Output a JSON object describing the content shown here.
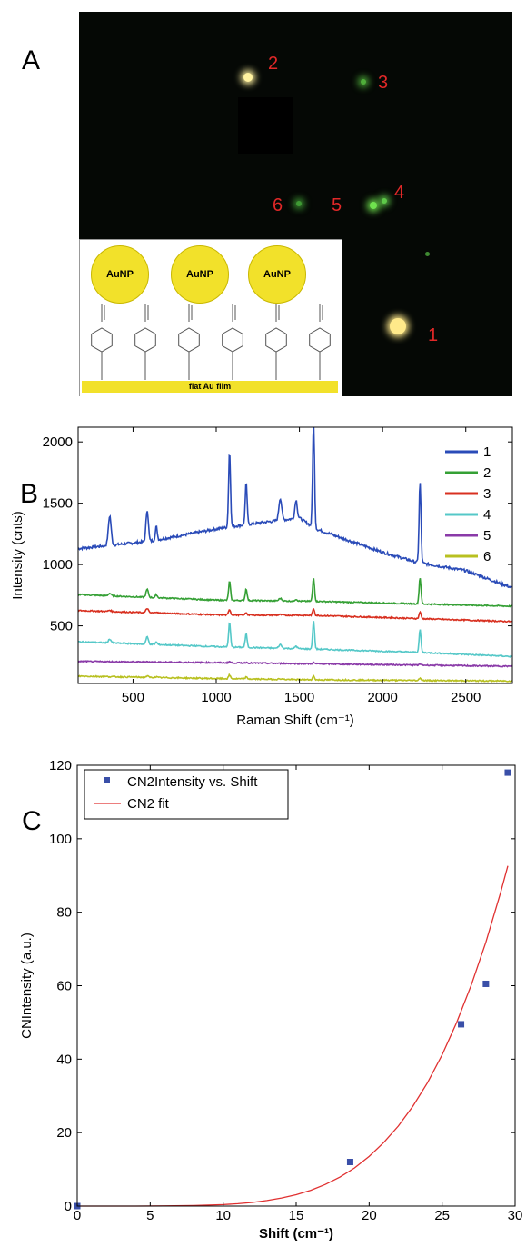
{
  "panels": {
    "a": "A",
    "b": "B",
    "c": "C"
  },
  "micrograph": {
    "spots": [
      {
        "id": "1",
        "label": "1",
        "color": "#ffe98a"
      },
      {
        "id": "2",
        "label": "2",
        "color": "#fff2a0"
      },
      {
        "id": "3",
        "label": "3",
        "color": "#4fae3a"
      },
      {
        "id": "4",
        "label": "4",
        "color": "#5ec84a"
      },
      {
        "id": "5",
        "label": "5",
        "color": "#6fe24e"
      },
      {
        "id": "6",
        "label": "6",
        "color": "#3f9a34"
      }
    ],
    "label_color": "#e02828",
    "inset": {
      "nanoparticle_label": "AuNP",
      "nanoparticles": [
        "AuNP",
        "AuNP",
        "AuNP"
      ],
      "film_label": "flat Au film",
      "molecule_count": 6
    }
  },
  "chart_data": [
    {
      "type": "line",
      "title": "",
      "xlabel": "Raman Shift (cm⁻¹)",
      "ylabel": "Intensity (cnts)",
      "xlim": [
        170,
        2780
      ],
      "ylim": [
        30,
        2120
      ],
      "xticks": [
        500,
        1000,
        1500,
        2000,
        2500
      ],
      "yticks": [
        500,
        1000,
        1500,
        2000
      ],
      "legend_position": "top-right",
      "peak_positions": [
        360,
        585,
        640,
        1080,
        1180,
        1385,
        1480,
        1585,
        2225
      ],
      "series": [
        {
          "name": "1",
          "color": "#2a4bb8",
          "baseline": [
            [
              170,
              1130
            ],
            [
              600,
              1190
            ],
            [
              1000,
              1290
            ],
            [
              1200,
              1330
            ],
            [
              1500,
              1380
            ],
            [
              1600,
              1290
            ],
            [
              2000,
              1100
            ],
            [
              2200,
              1020
            ],
            [
              2500,
              950
            ],
            [
              2780,
              810
            ]
          ],
          "peaks": [
            240,
            260,
            110,
            620,
            340,
            180,
            150,
            860,
            660
          ]
        },
        {
          "name": "2",
          "color": "#35a035",
          "baseline": [
            [
              170,
              755
            ],
            [
              1000,
              710
            ],
            [
              1600,
              700
            ],
            [
              2200,
              680
            ],
            [
              2780,
              660
            ]
          ],
          "peaks": [
            20,
            65,
            25,
            155,
            95,
            20,
            15,
            190,
            215
          ]
        },
        {
          "name": "3",
          "color": "#d83020",
          "baseline": [
            [
              170,
              625
            ],
            [
              1000,
              590
            ],
            [
              1600,
              585
            ],
            [
              2200,
              560
            ],
            [
              2780,
              535
            ]
          ],
          "peaks": [
            10,
            35,
            10,
            45,
            20,
            5,
            5,
            55,
            55
          ]
        },
        {
          "name": "4",
          "color": "#55c8c8",
          "baseline": [
            [
              170,
              370
            ],
            [
              1000,
              330
            ],
            [
              1600,
              310
            ],
            [
              2200,
              285
            ],
            [
              2780,
              250
            ]
          ],
          "peaks": [
            30,
            60,
            20,
            200,
            110,
            30,
            20,
            230,
            185
          ]
        },
        {
          "name": "5",
          "color": "#8a3aa8",
          "baseline": [
            [
              170,
              210
            ],
            [
              1000,
              200
            ],
            [
              1600,
              190
            ],
            [
              2200,
              180
            ],
            [
              2780,
              170
            ]
          ],
          "peaks": [
            0,
            5,
            0,
            10,
            5,
            0,
            0,
            10,
            8
          ]
        },
        {
          "name": "6",
          "color": "#b8c020",
          "baseline": [
            [
              170,
              90
            ],
            [
              1000,
              70
            ],
            [
              1600,
              60
            ],
            [
              2200,
              55
            ],
            [
              2780,
              50
            ]
          ],
          "peaks": [
            0,
            10,
            5,
            30,
            15,
            5,
            0,
            30,
            20
          ]
        }
      ]
    },
    {
      "type": "scatter",
      "title": "",
      "xlabel": "Shift (cm⁻¹)",
      "ylabel": "CNIntensity (a.u.)",
      "xlim": [
        0,
        30
      ],
      "ylim": [
        0,
        120
      ],
      "xticks": [
        0,
        5,
        10,
        15,
        20,
        25,
        30
      ],
      "yticks": [
        0,
        20,
        40,
        60,
        80,
        100,
        120
      ],
      "legend_position": "top-left",
      "series": [
        {
          "name": "CN2Intensity vs. Shift",
          "kind": "markers",
          "color": "#3a4fa8",
          "x": [
            0,
            18.7,
            26.3,
            28.0,
            29.5
          ],
          "y": [
            0,
            12,
            49.5,
            60.5,
            118
          ]
        },
        {
          "name": "CN2 fit",
          "kind": "line",
          "color": "#e03030",
          "x": [
            0,
            2,
            4,
            6,
            8,
            10,
            11,
            12,
            13,
            14,
            15,
            16,
            17,
            18,
            19,
            20,
            21,
            22,
            23,
            24,
            25,
            26,
            27,
            28,
            29,
            29.5
          ],
          "y": [
            0,
            0,
            0.01,
            0.05,
            0.15,
            0.4,
            0.65,
            1.0,
            1.5,
            2.2,
            3.1,
            4.3,
            5.9,
            7.9,
            10.4,
            13.5,
            17.3,
            21.8,
            27.2,
            33.6,
            41.2,
            50.0,
            60.2,
            71.9,
            85.2,
            92.6
          ]
        }
      ]
    }
  ]
}
